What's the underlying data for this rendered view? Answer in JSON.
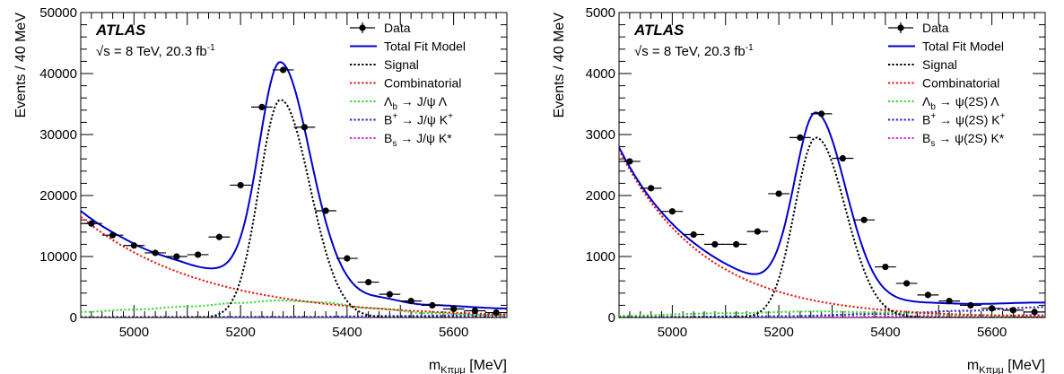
{
  "chart_data": [
    {
      "type": "line",
      "panel": "left",
      "xlabel": "m_{Kπμμ} [MeV]",
      "ylabel": "Events / 40 MeV",
      "xlim": [
        4900,
        5700
      ],
      "ylim": [
        0,
        50000
      ],
      "xticks": [
        "5000",
        "5200",
        "5400",
        "5600"
      ],
      "yticks": [
        "0",
        "10000",
        "20000",
        "30000",
        "40000",
        "50000"
      ],
      "atlas_label": "ATLAS",
      "info": "√s = 8 TeV, 20.3 fb-1",
      "legend_position": "top-right",
      "legend": [
        {
          "label": "Data",
          "style": "points",
          "color": "#000000"
        },
        {
          "label": "Total Fit Model",
          "style": "solid",
          "color": "#0000cc"
        },
        {
          "label": "Signal",
          "style": "dotted",
          "color": "#000000"
        },
        {
          "label": "Combinatorial",
          "style": "dotted",
          "color": "#e3170a"
        },
        {
          "label": "Λb → J/ψ Λ",
          "style": "dotted",
          "color": "#33dd33"
        },
        {
          "label": "B+ → J/ψ K+",
          "style": "dotted",
          "color": "#2222cc"
        },
        {
          "label": "Bs → J/ψ K*",
          "style": "dotted",
          "color": "#dd22dd"
        }
      ],
      "data_points": {
        "x": [
          4920,
          4960,
          5000,
          5040,
          5080,
          5120,
          5160,
          5200,
          5240,
          5280,
          5320,
          5360,
          5400,
          5440,
          5480,
          5520,
          5560,
          5600,
          5640,
          5680
        ],
        "y": [
          15400,
          13500,
          11800,
          10600,
          10000,
          10300,
          13200,
          21700,
          34500,
          40600,
          31200,
          17500,
          9700,
          5800,
          3800,
          2700,
          2000,
          1400,
          1100,
          800
        ]
      },
      "curves": {
        "signal": {
          "amplitude": 35700,
          "mean": 5275,
          "sigma": 40,
          "tail_sigma": 55
        },
        "combinatorial": {
          "y_at_4900": 16500,
          "decay": 230
        },
        "lambda_b": {
          "x": [
            4900,
            5000,
            5100,
            5200,
            5270,
            5350,
            5450,
            5550,
            5700
          ],
          "y": [
            900,
            1300,
            1800,
            2400,
            2800,
            2500,
            1500,
            700,
            300
          ]
        },
        "b_plus": {
          "x": [
            4900,
            5300,
            5500,
            5700
          ],
          "y": [
            50,
            100,
            250,
            450
          ]
        },
        "b_s": {
          "x": [
            4900,
            5300,
            5500,
            5700
          ],
          "y": [
            40,
            60,
            120,
            200
          ]
        }
      }
    },
    {
      "type": "line",
      "panel": "right",
      "xlabel": "m_{Kπμμ} [MeV]",
      "ylabel": "Events / 40 MeV",
      "xlim": [
        4900,
        5700
      ],
      "ylim": [
        0,
        5000
      ],
      "xticks": [
        "5000",
        "5200",
        "5400",
        "5600"
      ],
      "yticks": [
        "0",
        "1000",
        "2000",
        "3000",
        "4000",
        "5000"
      ],
      "atlas_label": "ATLAS",
      "info": "√s = 8 TeV, 20.3 fb-1",
      "legend_position": "top-right",
      "legend": [
        {
          "label": "Data",
          "style": "points",
          "color": "#000000"
        },
        {
          "label": "Total Fit Model",
          "style": "solid",
          "color": "#0000cc"
        },
        {
          "label": "Signal",
          "style": "dotted",
          "color": "#000000"
        },
        {
          "label": "Combinatorial",
          "style": "dotted",
          "color": "#e3170a"
        },
        {
          "label": "Λb → ψ(2S) Λ",
          "style": "dotted",
          "color": "#33dd33"
        },
        {
          "label": "B+ → ψ(2S) K+",
          "style": "dotted",
          "color": "#2222cc"
        },
        {
          "label": "Bs → ψ(2S) K*",
          "style": "dotted",
          "color": "#dd22dd"
        }
      ],
      "data_points": {
        "x": [
          4920,
          4960,
          5000,
          5040,
          5080,
          5120,
          5160,
          5200,
          5240,
          5280,
          5320,
          5360,
          5400,
          5440,
          5480,
          5520,
          5560,
          5600,
          5640,
          5680
        ],
        "y": [
          2560,
          2120,
          1740,
          1360,
          1200,
          1200,
          1410,
          2030,
          2950,
          3340,
          2610,
          1600,
          830,
          560,
          370,
          270,
          200,
          150,
          120,
          90
        ]
      },
      "curves": {
        "signal": {
          "amplitude": 2950,
          "mean": 5270,
          "sigma": 40,
          "tail_sigma": 55
        },
        "combinatorial": {
          "y_at_4900": 2750,
          "decay": 160
        },
        "lambda_b": {
          "x": [
            4900,
            5100,
            5270,
            5400,
            5550,
            5700
          ],
          "y": [
            30,
            70,
            100,
            80,
            40,
            15
          ]
        },
        "b_plus": {
          "x": [
            4900,
            5200,
            5400,
            5550,
            5700
          ],
          "y": [
            5,
            20,
            60,
            110,
            170
          ]
        },
        "b_s": {
          "x": [
            4900,
            5300,
            5500,
            5700
          ],
          "y": [
            5,
            10,
            25,
            40
          ]
        }
      }
    }
  ]
}
